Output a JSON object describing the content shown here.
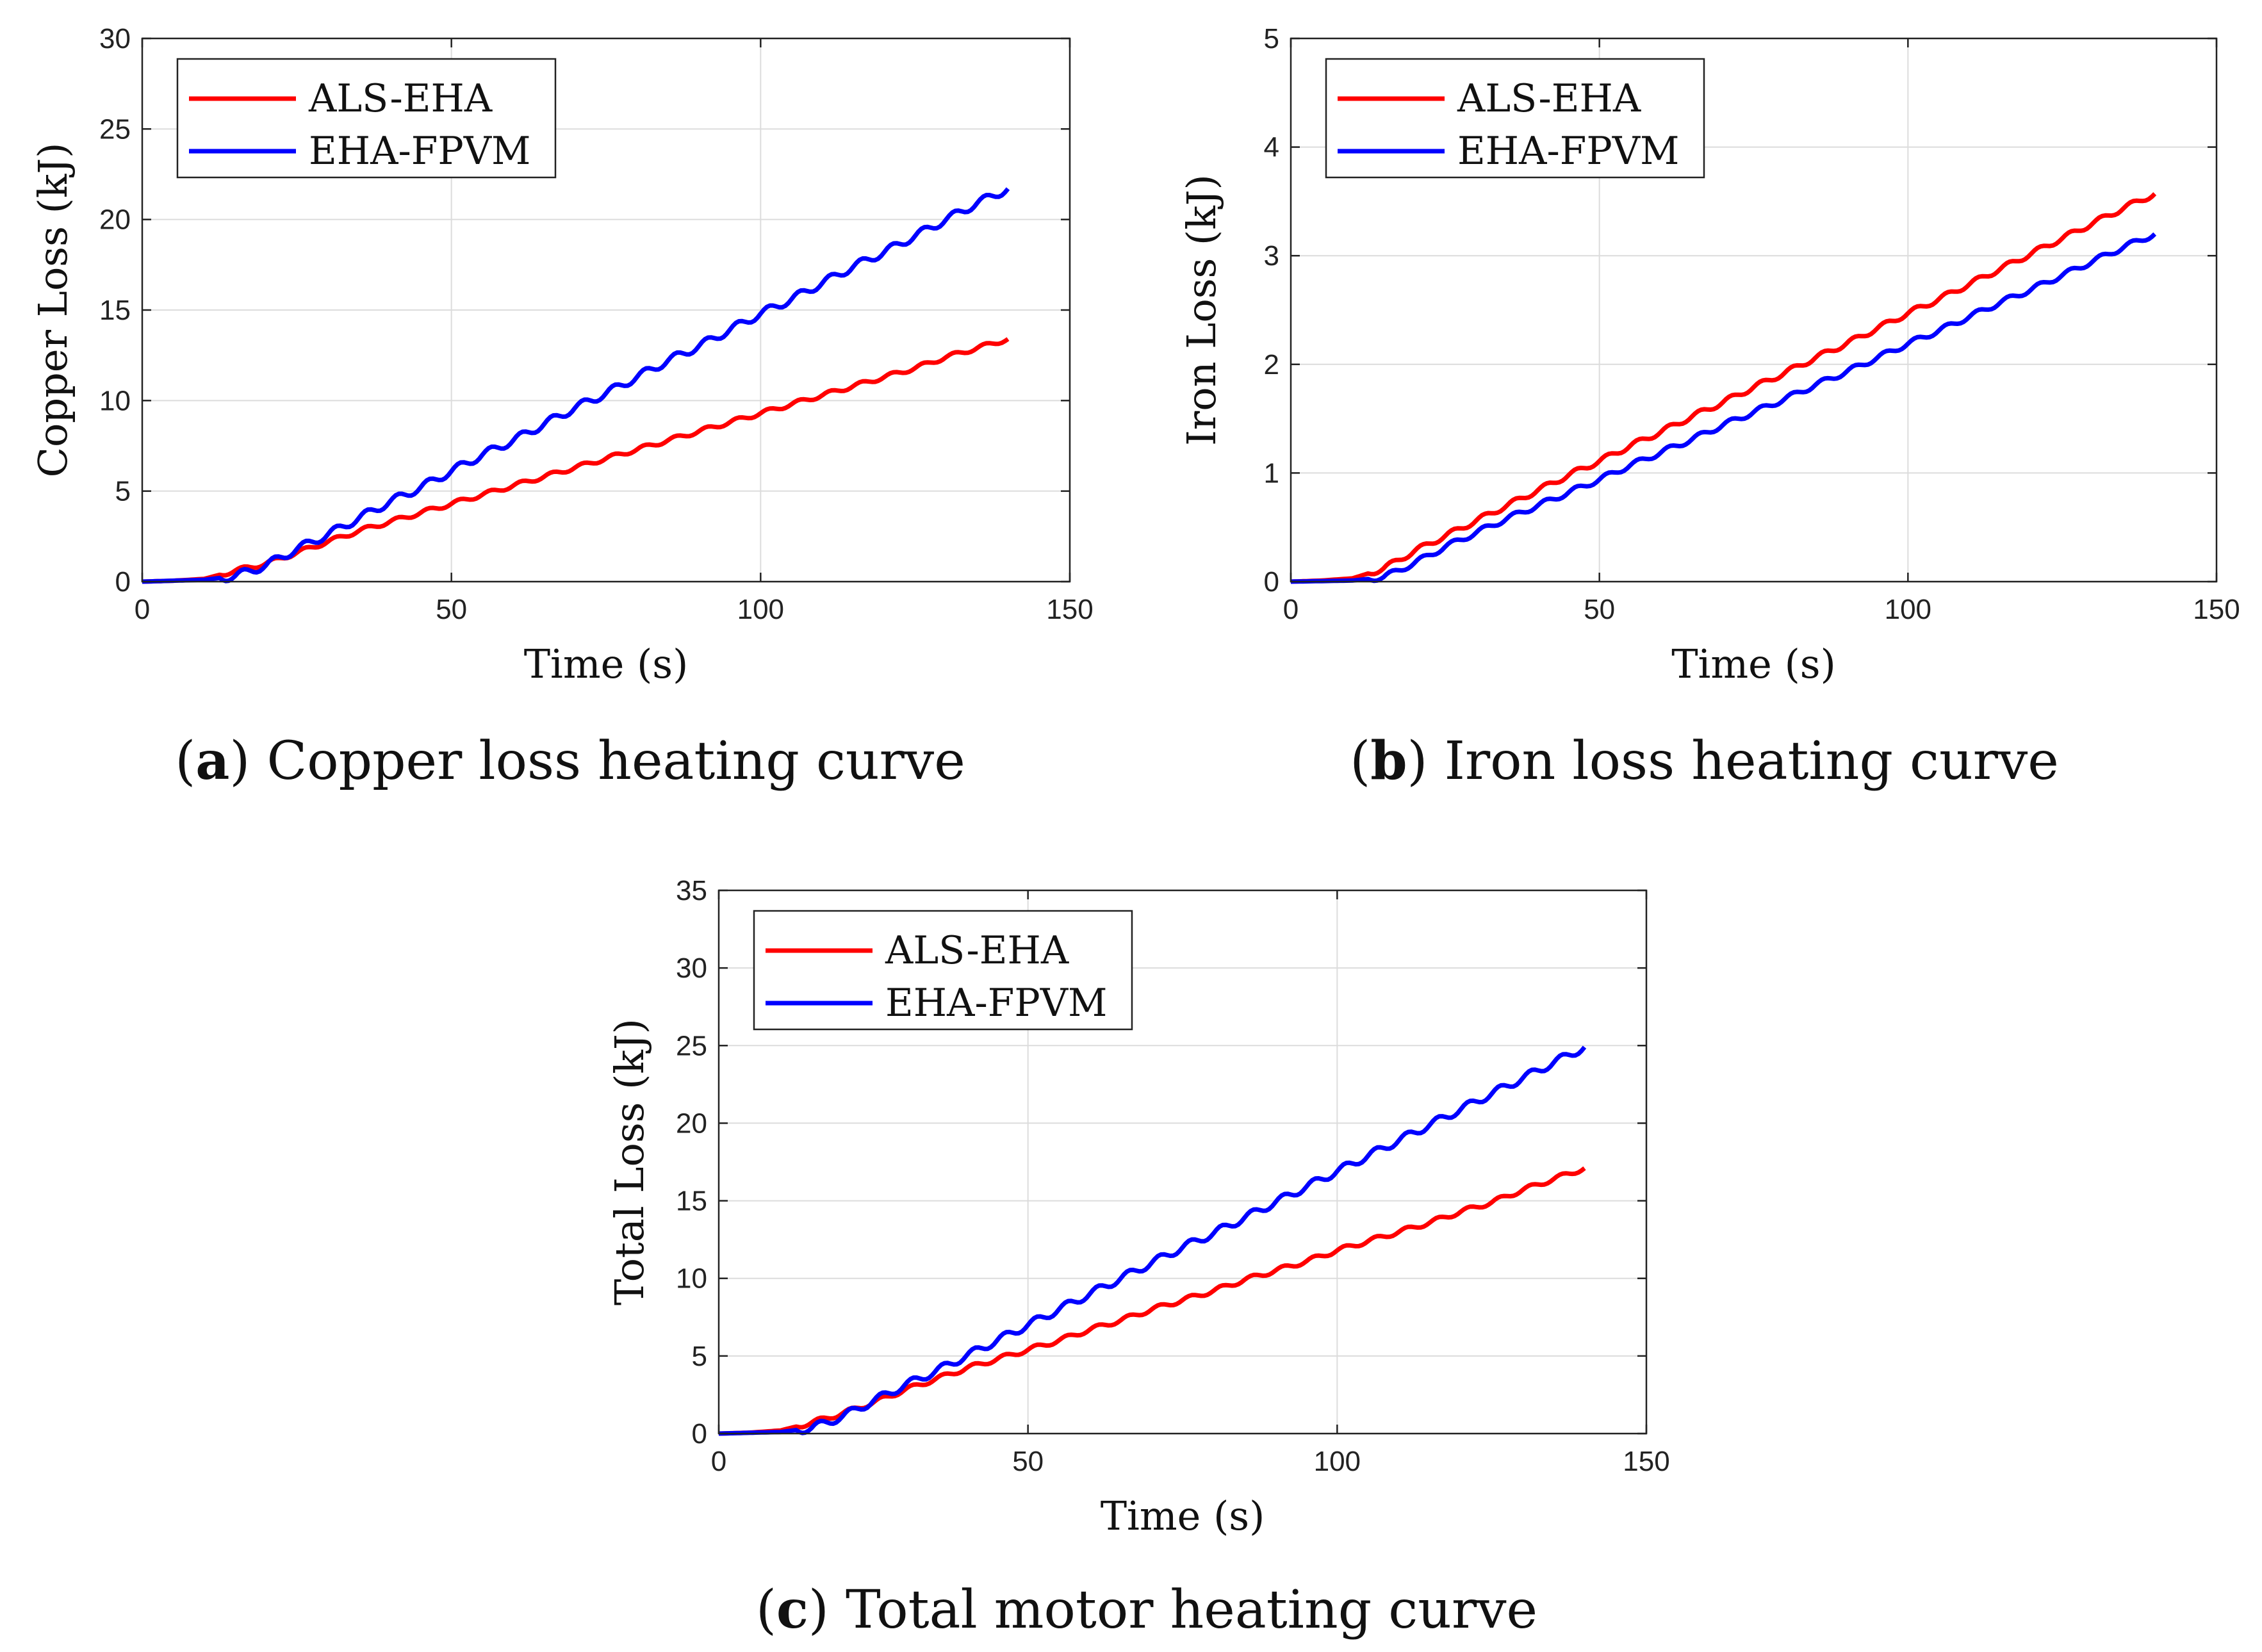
{
  "chart_data": [
    {
      "id": "a",
      "type": "line",
      "title": "",
      "caption_letter": "a",
      "caption_text": "Copper loss heating curve",
      "xlabel": "Time (s)",
      "ylabel": "Copper Loss (kJ)",
      "xlim": [
        0,
        150
      ],
      "ylim": [
        0,
        30
      ],
      "xticks": [
        0,
        50,
        100,
        150
      ],
      "yticks": [
        0,
        5,
        10,
        15,
        20,
        25,
        30
      ],
      "grid": true,
      "legend_position": "top-left",
      "x": [
        0,
        5,
        10,
        15,
        20,
        25,
        30,
        35,
        40,
        45,
        50,
        55,
        60,
        65,
        70,
        75,
        80,
        85,
        90,
        95,
        100,
        105,
        110,
        115,
        120,
        125,
        130,
        135,
        140
      ],
      "series": [
        {
          "name": "ALS-EHA",
          "color": "#ff0000",
          "wave": 0.12,
          "values": [
            0,
            0.05,
            0.15,
            0.6,
            1.0,
            1.6,
            2.2,
            2.8,
            3.3,
            3.8,
            4.3,
            4.8,
            5.3,
            5.8,
            6.3,
            6.8,
            7.3,
            7.8,
            8.3,
            8.8,
            9.3,
            9.8,
            10.3,
            10.8,
            11.3,
            11.8,
            12.4,
            12.9,
            13.4
          ]
        },
        {
          "name": "EHA-FPVM",
          "color": "#0000ff",
          "wave": 0.22,
          "values": [
            0,
            0.05,
            0.1,
            0.3,
            0.9,
            1.8,
            2.6,
            3.5,
            4.4,
            5.2,
            6.1,
            7.0,
            7.8,
            8.7,
            9.6,
            10.4,
            11.3,
            12.2,
            13.0,
            13.9,
            14.8,
            15.6,
            16.5,
            17.4,
            18.2,
            19.1,
            20.0,
            20.9,
            21.7
          ]
        }
      ]
    },
    {
      "id": "b",
      "type": "line",
      "title": "",
      "caption_letter": "b",
      "caption_text": "Iron loss heating curve",
      "xlabel": "Time (s)",
      "ylabel": "Iron Loss (kJ)",
      "xlim": [
        0,
        150
      ],
      "ylim": [
        0,
        5
      ],
      "xticks": [
        0,
        50,
        100,
        150
      ],
      "yticks": [
        0,
        1,
        2,
        3,
        4,
        5
      ],
      "grid": true,
      "legend_position": "top-left",
      "x": [
        0,
        5,
        10,
        15,
        20,
        25,
        30,
        35,
        40,
        45,
        50,
        55,
        60,
        65,
        70,
        75,
        80,
        85,
        90,
        95,
        100,
        105,
        110,
        115,
        120,
        125,
        130,
        135,
        140
      ],
      "series": [
        {
          "name": "ALS-EHA",
          "color": "#ff0000",
          "wave": 0.025,
          "values": [
            0,
            0.01,
            0.03,
            0.12,
            0.28,
            0.42,
            0.56,
            0.7,
            0.84,
            0.98,
            1.11,
            1.25,
            1.38,
            1.52,
            1.65,
            1.79,
            1.92,
            2.06,
            2.19,
            2.33,
            2.47,
            2.6,
            2.74,
            2.88,
            3.02,
            3.16,
            3.3,
            3.44,
            3.57
          ]
        },
        {
          "name": "EHA-FPVM",
          "color": "#0000ff",
          "wave": 0.025,
          "values": [
            0,
            0.005,
            0.01,
            0.04,
            0.17,
            0.32,
            0.45,
            0.58,
            0.7,
            0.82,
            0.94,
            1.07,
            1.19,
            1.31,
            1.44,
            1.56,
            1.68,
            1.81,
            1.93,
            2.06,
            2.19,
            2.31,
            2.44,
            2.57,
            2.69,
            2.82,
            2.95,
            3.08,
            3.2
          ]
        }
      ]
    },
    {
      "id": "c",
      "type": "line",
      "title": "",
      "caption_letter": "c",
      "caption_text": "Total motor heating curve",
      "xlabel": "Time (s)",
      "ylabel": "Total Loss (kJ)",
      "xlim": [
        0,
        150
      ],
      "ylim": [
        0,
        35
      ],
      "xticks": [
        0,
        50,
        100,
        150
      ],
      "yticks": [
        0,
        5,
        10,
        15,
        20,
        25,
        30,
        35
      ],
      "grid": true,
      "legend_position": "top-left",
      "x": [
        0,
        5,
        10,
        15,
        20,
        25,
        30,
        35,
        40,
        45,
        50,
        55,
        60,
        65,
        70,
        75,
        80,
        85,
        90,
        95,
        100,
        105,
        110,
        115,
        120,
        125,
        130,
        135,
        140
      ],
      "series": [
        {
          "name": "ALS-EHA",
          "color": "#ff0000",
          "wave": 0.15,
          "values": [
            0,
            0.06,
            0.2,
            0.7,
            1.3,
            2.0,
            2.8,
            3.5,
            4.2,
            4.8,
            5.4,
            6.0,
            6.7,
            7.3,
            8.0,
            8.6,
            9.2,
            9.9,
            10.5,
            11.1,
            11.8,
            12.4,
            13.0,
            13.6,
            14.3,
            14.9,
            15.7,
            16.4,
            17.1
          ]
        },
        {
          "name": "EHA-FPVM",
          "color": "#0000ff",
          "wave": 0.25,
          "values": [
            0,
            0.05,
            0.1,
            0.35,
            1.1,
            2.1,
            3.1,
            4.0,
            5.0,
            6.0,
            7.0,
            8.0,
            9.0,
            10.0,
            11.0,
            12.0,
            12.9,
            13.9,
            14.9,
            15.9,
            16.9,
            17.9,
            18.9,
            19.9,
            20.9,
            21.9,
            22.9,
            23.9,
            24.9
          ]
        }
      ]
    }
  ]
}
